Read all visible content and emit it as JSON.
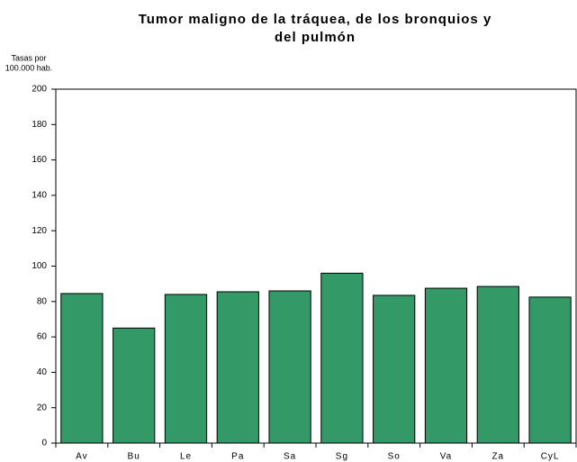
{
  "chart_data": {
    "type": "bar",
    "title": [
      "Tumor maligno de la tráquea, de los bronquios y",
      "del pulmón"
    ],
    "y_label": [
      "Tasas por",
      "100.000 hab."
    ],
    "categories": [
      "Av",
      "Bu",
      "Le",
      "Pa",
      "Sa",
      "Sg",
      "So",
      "Va",
      "Za",
      "CyL"
    ],
    "values": [
      84.5,
      65,
      84,
      85.5,
      86,
      96,
      83.5,
      87.5,
      88.5,
      82.5
    ],
    "color": "#339966",
    "ylim": [
      0,
      200
    ],
    "yticks": [
      0,
      20,
      40,
      60,
      80,
      100,
      120,
      140,
      160,
      180,
      200
    ]
  }
}
